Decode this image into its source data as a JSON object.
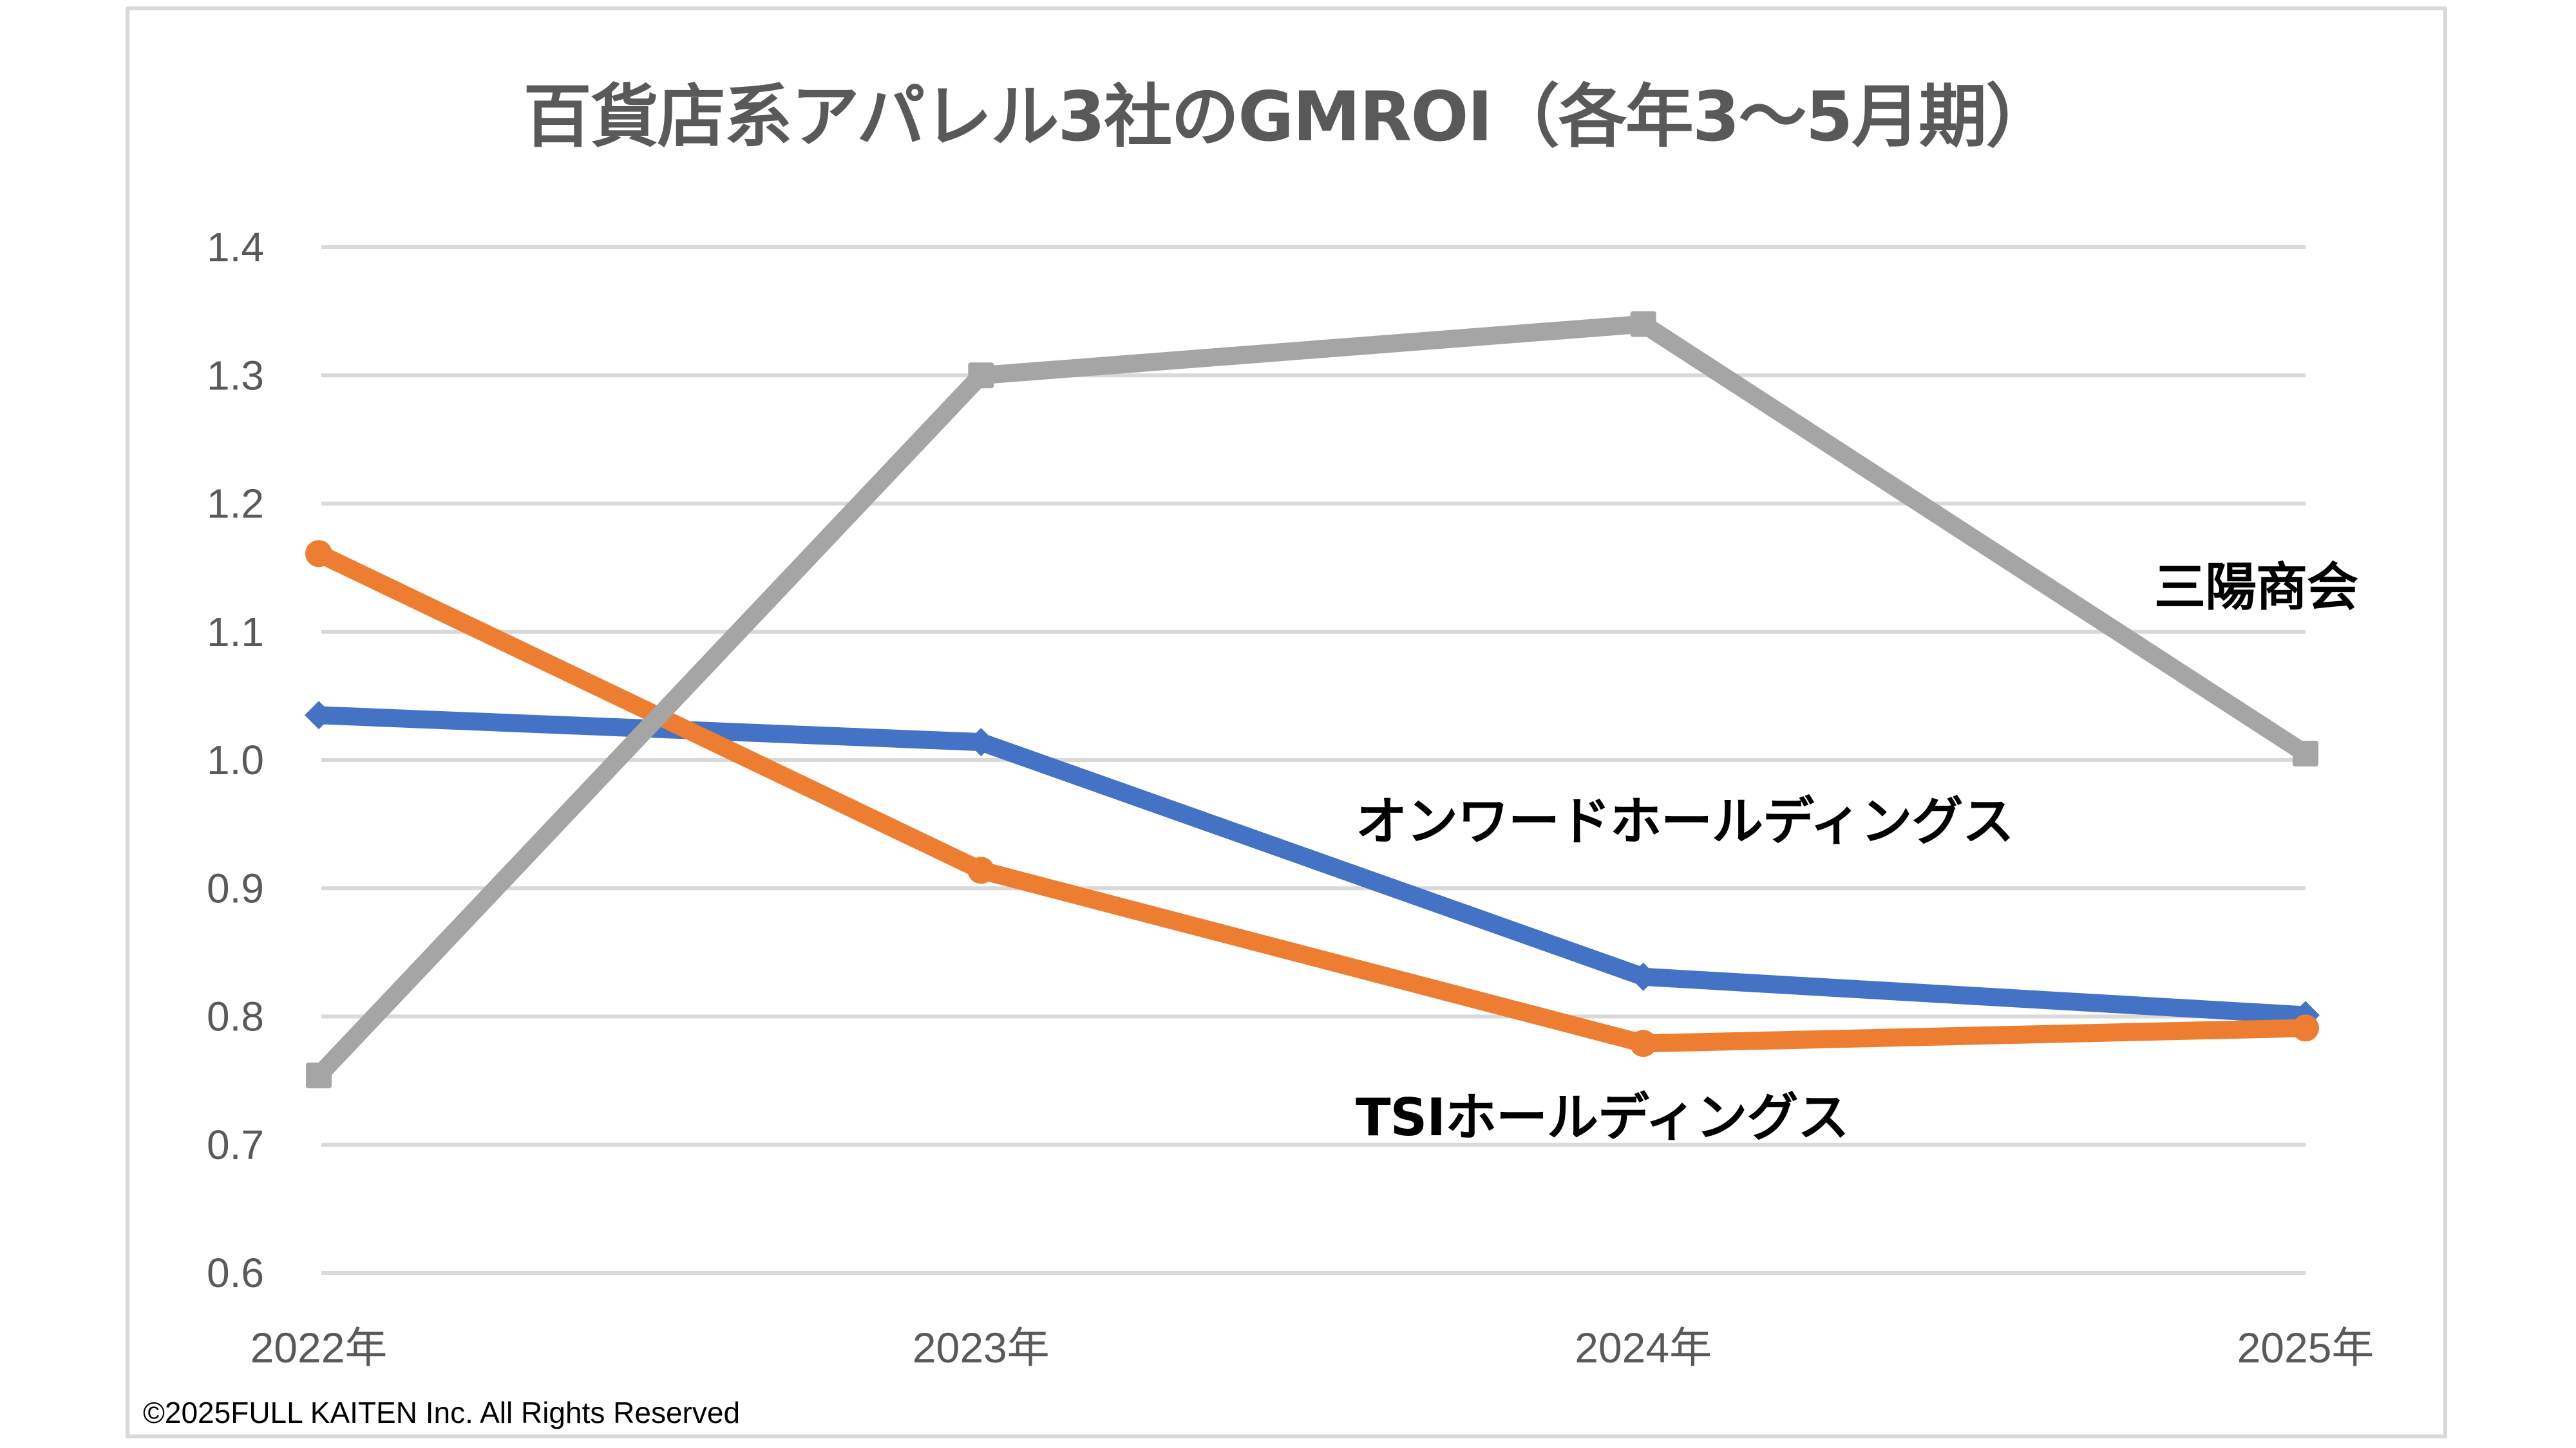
{
  "chart_data": {
    "type": "line",
    "title": "百貨店系アパレル3社のGMROI（各年3～5月期）",
    "xlabel": "",
    "ylabel": "",
    "categories": [
      "2022年",
      "2023年",
      "2024年",
      "2025年"
    ],
    "ylim": [
      0.6,
      1.4
    ],
    "yticks": [
      "0.6",
      "0.7",
      "0.8",
      "0.9",
      "1.0",
      "1.1",
      "1.2",
      "1.3",
      "1.4"
    ],
    "ytick_values": [
      0.6,
      0.7,
      0.8,
      0.9,
      1.0,
      1.1,
      1.2,
      1.3,
      1.4
    ],
    "grid": "horizontal",
    "legend": "inline-labels",
    "series": [
      {
        "name": "オンワードホールディングス",
        "color": "#4472C4",
        "marker": "diamond",
        "values": [
          1.035,
          1.014,
          0.831,
          0.801
        ]
      },
      {
        "name": "TSIホールディングス",
        "color": "#ED7D31",
        "marker": "circle",
        "values": [
          1.161,
          0.914,
          0.779,
          0.791
        ]
      },
      {
        "name": "三陽商会",
        "color": "#A5A5A5",
        "marker": "square",
        "values": [
          0.754,
          1.3,
          1.34,
          1.005
        ]
      }
    ]
  },
  "labels": {
    "onward": "オンワードホールディングス",
    "tsi": "TSIホールディングス",
    "sanyo": "三陽商会"
  },
  "footer": {
    "copyright": "©2025FULL KAITEN Inc. All Rights Reserved"
  },
  "colors": {
    "gridline": "#D9D9D9",
    "axis_text": "#595959",
    "frame": "#D9D9D9"
  }
}
